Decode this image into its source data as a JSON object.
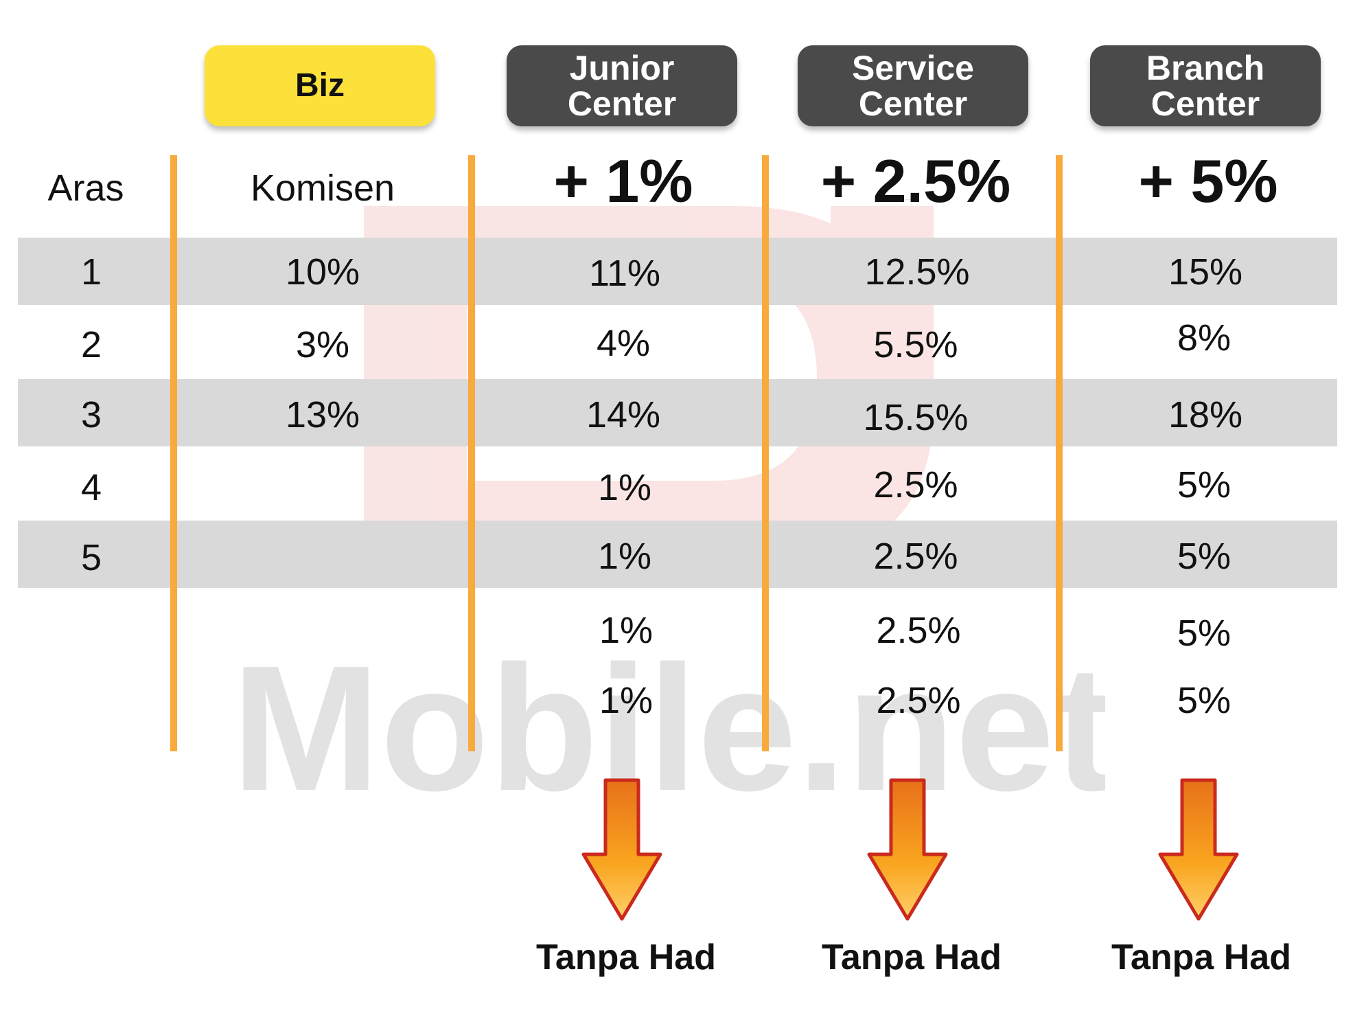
{
  "headers": {
    "biz": "Biz",
    "junior": "Junior\nCenter",
    "service": "Service\nCenter",
    "branch": "Branch\nCenter"
  },
  "column_labels": {
    "level": "Aras",
    "commission": "Komisen"
  },
  "bonuses": {
    "junior": "+ 1%",
    "service": "+ 2.5%",
    "branch": "+ 5%"
  },
  "rows": [
    {
      "level": "1",
      "biz": "10%",
      "junior": "11%",
      "service": "12.5%",
      "branch": "15%"
    },
    {
      "level": "2",
      "biz": "3%",
      "junior": "4%",
      "service": "5.5%",
      "branch": "8%"
    },
    {
      "level": "3",
      "biz": "13%",
      "junior": "14%",
      "service": "15.5%",
      "branch": "18%"
    },
    {
      "level": "4",
      "biz": "",
      "junior": "1%",
      "service": "2.5%",
      "branch": "5%"
    },
    {
      "level": "5",
      "biz": "",
      "junior": "1%",
      "service": "2.5%",
      "branch": "5%"
    },
    {
      "level": "",
      "biz": "",
      "junior": "1%",
      "service": "2.5%",
      "branch": "5%"
    },
    {
      "level": "",
      "biz": "",
      "junior": "1%",
      "service": "2.5%",
      "branch": "5%"
    }
  ],
  "footer": {
    "junior": "Tanpa Had",
    "service": "Tanpa Had",
    "branch": "Tanpa Had"
  },
  "watermark": {
    "text": "Mobile.net"
  },
  "colors": {
    "biz_header": "#fbe13a",
    "center_header": "#4a4a4a",
    "divider": "#f8aa3c",
    "stripe": "#d9d9d9",
    "arrow_fill": "#f8a11f",
    "arrow_outline": "#c92a1d"
  },
  "icons": {
    "arrow": "arrow-down-icon"
  }
}
